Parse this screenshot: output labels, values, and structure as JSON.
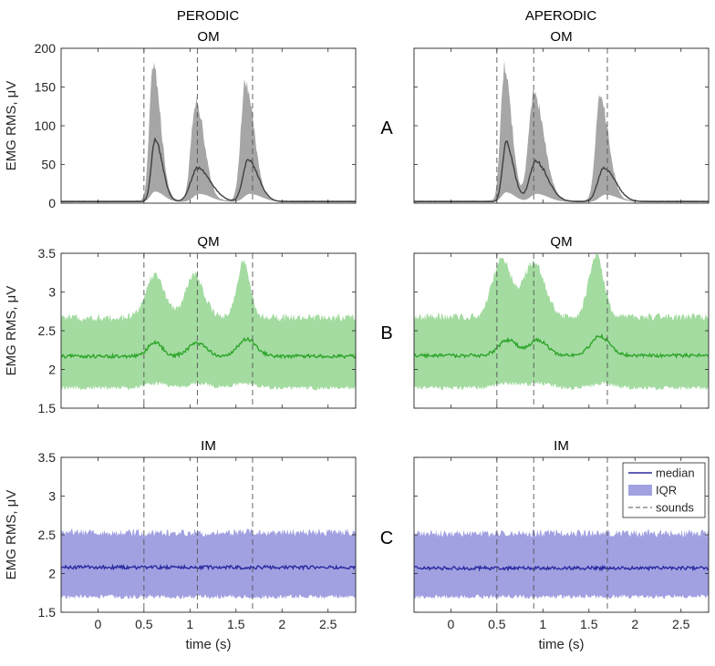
{
  "figure": {
    "columns": [
      "PERODIC",
      "APERODIC"
    ],
    "rows": [
      "A",
      "B",
      "C"
    ]
  },
  "chart_data": [
    {
      "type": "area",
      "panel": "A-left",
      "row_label": "A",
      "column_title": "PERODIC",
      "title": "OM",
      "xlabel": "",
      "ylabel": "EMG RMS, μV",
      "xlim": [
        -0.4,
        2.8
      ],
      "ylim": [
        0,
        200
      ],
      "xticks": [
        0,
        0.5,
        1,
        1.5,
        2,
        2.5
      ],
      "xtick_labels": [
        "0",
        "0.5",
        "1",
        "1.5",
        "2",
        "2.5"
      ],
      "yticks": [
        0,
        50,
        100,
        150,
        200
      ],
      "ytick_labels": [
        "0",
        "50",
        "100",
        "150",
        "200"
      ],
      "sounds": [
        0.5,
        1.08,
        1.68
      ],
      "baseline": 2,
      "median_peaks": [
        {
          "x": 0.62,
          "y": 82,
          "w": 0.05
        },
        {
          "x": 1.08,
          "y": 45,
          "w": 0.09
        },
        {
          "x": 1.63,
          "y": 55,
          "w": 0.07
        }
      ],
      "band_high_peaks": [
        {
          "x": 0.6,
          "y": 178,
          "w": 0.05
        },
        {
          "x": 1.06,
          "y": 132,
          "w": 0.06
        },
        {
          "x": 1.6,
          "y": 155,
          "w": 0.06
        }
      ],
      "band_low_peaks": [
        {
          "x": 0.62,
          "y": 15,
          "w": 0.06
        },
        {
          "x": 1.1,
          "y": 12,
          "w": 0.08
        },
        {
          "x": 1.65,
          "y": 12,
          "w": 0.08
        }
      ],
      "color_band": "#a6a6a6",
      "color_median": "#404040"
    },
    {
      "type": "area",
      "panel": "A-right",
      "row_label": "A",
      "column_title": "APERODIC",
      "title": "OM",
      "xlabel": "",
      "ylabel": "",
      "xlim": [
        -0.4,
        2.8
      ],
      "ylim": [
        0,
        200
      ],
      "xticks": [
        0,
        0.5,
        1,
        1.5,
        2,
        2.5
      ],
      "xtick_labels": [
        "0",
        "0.5",
        "1",
        "1.5",
        "2",
        "2.5"
      ],
      "yticks": [
        0,
        50,
        100,
        150,
        200
      ],
      "ytick_labels": [],
      "sounds": [
        0.5,
        0.9,
        1.7
      ],
      "baseline": 2,
      "median_peaks": [
        {
          "x": 0.6,
          "y": 78,
          "w": 0.05
        },
        {
          "x": 0.92,
          "y": 54,
          "w": 0.08
        },
        {
          "x": 1.66,
          "y": 45,
          "w": 0.08
        }
      ],
      "band_high_peaks": [
        {
          "x": 0.58,
          "y": 175,
          "w": 0.05
        },
        {
          "x": 0.9,
          "y": 140,
          "w": 0.07
        },
        {
          "x": 1.62,
          "y": 135,
          "w": 0.06
        }
      ],
      "band_low_peaks": [
        {
          "x": 0.6,
          "y": 14,
          "w": 0.06
        },
        {
          "x": 0.93,
          "y": 12,
          "w": 0.08
        },
        {
          "x": 1.68,
          "y": 11,
          "w": 0.08
        }
      ],
      "color_band": "#a6a6a6",
      "color_median": "#404040"
    },
    {
      "type": "area",
      "panel": "B-left",
      "row_label": "B",
      "column_title": "",
      "title": "QM",
      "xlabel": "",
      "ylabel": "EMG RMS, μV",
      "xlim": [
        -0.4,
        2.8
      ],
      "ylim": [
        1.5,
        3.5
      ],
      "xticks": [
        0,
        0.5,
        1,
        1.5,
        2,
        2.5
      ],
      "xtick_labels": [
        "0",
        "0.5",
        "1",
        "1.5",
        "2",
        "2.5"
      ],
      "yticks": [
        1.5,
        2,
        2.5,
        3,
        3.5
      ],
      "ytick_labels": [
        "1.5",
        "2",
        "2.5",
        "3",
        "3.5"
      ],
      "sounds": [
        0.5,
        1.08,
        1.68
      ],
      "median_base": 2.17,
      "band_high_base": 2.67,
      "band_low_base": 1.76,
      "median_peaks": [
        {
          "x": 0.62,
          "y": 0.18,
          "w": 0.08
        },
        {
          "x": 1.08,
          "y": 0.17,
          "w": 0.1
        },
        {
          "x": 1.62,
          "y": 0.22,
          "w": 0.1
        }
      ],
      "band_high_peaks": [
        {
          "x": 0.62,
          "y": 0.55,
          "w": 0.1
        },
        {
          "x": 1.05,
          "y": 0.55,
          "w": 0.1
        },
        {
          "x": 1.58,
          "y": 0.72,
          "w": 0.07
        }
      ],
      "band_low_peaks": [
        {
          "x": 0.62,
          "y": 0.06,
          "w": 0.12
        },
        {
          "x": 1.1,
          "y": 0.06,
          "w": 0.12
        },
        {
          "x": 1.6,
          "y": 0.06,
          "w": 0.12
        }
      ],
      "color_band": "#a3dba0",
      "color_median": "#2ea52a"
    },
    {
      "type": "area",
      "panel": "B-right",
      "row_label": "B",
      "column_title": "",
      "title": "QM",
      "xlabel": "",
      "ylabel": "",
      "xlim": [
        -0.4,
        2.8
      ],
      "ylim": [
        1.5,
        3.5
      ],
      "xticks": [
        0,
        0.5,
        1,
        1.5,
        2,
        2.5
      ],
      "xtick_labels": [
        "0",
        "0.5",
        "1",
        "1.5",
        "2",
        "2.5"
      ],
      "yticks": [
        1.5,
        2,
        2.5,
        3,
        3.5
      ],
      "ytick_labels": [],
      "sounds": [
        0.5,
        0.9,
        1.7
      ],
      "median_base": 2.18,
      "band_high_base": 2.68,
      "band_low_base": 1.76,
      "median_peaks": [
        {
          "x": 0.62,
          "y": 0.2,
          "w": 0.1
        },
        {
          "x": 0.95,
          "y": 0.2,
          "w": 0.1
        },
        {
          "x": 1.62,
          "y": 0.25,
          "w": 0.1
        }
      ],
      "band_high_peaks": [
        {
          "x": 0.55,
          "y": 0.75,
          "w": 0.1
        },
        {
          "x": 0.9,
          "y": 0.7,
          "w": 0.12
        },
        {
          "x": 1.58,
          "y": 0.8,
          "w": 0.08
        }
      ],
      "band_low_peaks": [
        {
          "x": 0.6,
          "y": 0.06,
          "w": 0.12
        },
        {
          "x": 0.95,
          "y": 0.06,
          "w": 0.12
        },
        {
          "x": 1.65,
          "y": 0.06,
          "w": 0.12
        }
      ],
      "color_band": "#a3dba0",
      "color_median": "#2ea52a"
    },
    {
      "type": "area",
      "panel": "C-left",
      "row_label": "C",
      "column_title": "",
      "title": "IM",
      "xlabel": "time  (s)",
      "ylabel": "EMG RMS, μV",
      "xlim": [
        -0.4,
        2.8
      ],
      "ylim": [
        1.5,
        3.5
      ],
      "xticks": [
        0,
        0.5,
        1,
        1.5,
        2,
        2.5
      ],
      "xtick_labels": [
        "0",
        "0.5",
        "1",
        "1.5",
        "2",
        "2.5"
      ],
      "yticks": [
        1.5,
        2,
        2.5,
        3,
        3.5
      ],
      "ytick_labels": [
        "1.5",
        "2",
        "2.5",
        "3",
        "3.5"
      ],
      "sounds": [
        0.5,
        1.08,
        1.68
      ],
      "median_base": 2.08,
      "band_high_base": 2.53,
      "band_low_base": 1.7,
      "median_peaks": [],
      "band_high_peaks": [],
      "band_low_peaks": [],
      "color_band": "#a1a1e2",
      "color_median": "#2b2ba0"
    },
    {
      "type": "area",
      "panel": "C-right",
      "row_label": "C",
      "column_title": "",
      "title": "IM",
      "xlabel": "time  (s)",
      "ylabel": "",
      "xlim": [
        -0.4,
        2.8
      ],
      "ylim": [
        1.5,
        3.5
      ],
      "xticks": [
        0,
        0.5,
        1,
        1.5,
        2,
        2.5
      ],
      "xtick_labels": [
        "0",
        "0.5",
        "1",
        "1.5",
        "2",
        "2.5"
      ],
      "yticks": [
        1.5,
        2,
        2.5,
        3,
        3.5
      ],
      "ytick_labels": [],
      "sounds": [
        0.5,
        0.9,
        1.7
      ],
      "median_base": 2.07,
      "band_high_base": 2.52,
      "band_low_base": 1.7,
      "median_peaks": [],
      "band_high_peaks": [],
      "band_low_peaks": [],
      "color_band": "#a1a1e2",
      "color_median": "#2b2ba0",
      "legend": {
        "position": "top-right",
        "entries": [
          {
            "label": "median",
            "kind": "line",
            "color": "#2b2ba0"
          },
          {
            "label": "IQR",
            "kind": "patch",
            "color": "#a1a1e2"
          },
          {
            "label": "sounds",
            "kind": "dashed",
            "color": "#555555"
          }
        ]
      }
    }
  ]
}
